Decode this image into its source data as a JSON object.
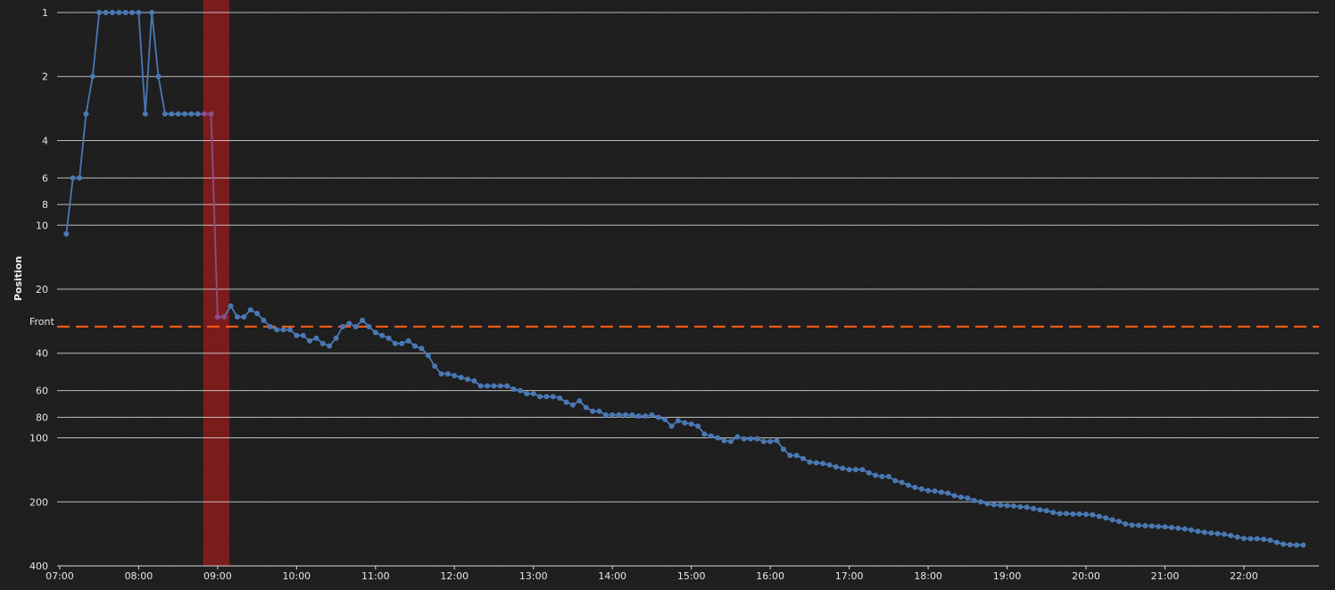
{
  "chart_data": {
    "type": "line",
    "ylabel": "Position",
    "y_scale": "log",
    "y_inverted": true,
    "ylim": [
      1,
      400
    ],
    "y_ticks": [
      1,
      2,
      4,
      6,
      8,
      10,
      20,
      40,
      60,
      80,
      100,
      200,
      400
    ],
    "x_ticks": [
      "07:00",
      "08:00",
      "09:00",
      "10:00",
      "11:00",
      "12:00",
      "13:00",
      "14:00",
      "15:00",
      "16:00",
      "17:00",
      "18:00",
      "19:00",
      "20:00",
      "21:00",
      "22:00"
    ],
    "xlim": [
      "06:58",
      "22:57"
    ],
    "grid": true,
    "colors": {
      "line": "#4a78b4",
      "highlight": "#8c1c1c",
      "reference": "#ff5a14",
      "background": "#1c1c1c"
    },
    "highlight_band": {
      "from": "08:49",
      "to": "09:09"
    },
    "reference_line": {
      "label": "Front",
      "y": 30
    },
    "series": [
      {
        "points": [
          [
            "07:05",
            11
          ],
          [
            "07:10",
            6
          ],
          [
            "07:15",
            6
          ],
          [
            "07:20",
            3
          ],
          [
            "07:25",
            2
          ],
          [
            "07:30",
            1
          ],
          [
            "07:35",
            1
          ],
          [
            "07:40",
            1
          ],
          [
            "07:45",
            1
          ],
          [
            "07:50",
            1
          ],
          [
            "07:55",
            1
          ],
          [
            "08:00",
            1
          ],
          [
            "08:05",
            3
          ],
          [
            "08:10",
            1
          ],
          [
            "08:15",
            2
          ],
          [
            "08:20",
            3
          ],
          [
            "08:25",
            3
          ],
          [
            "08:30",
            3
          ],
          [
            "08:35",
            3
          ],
          [
            "08:40",
            3
          ],
          [
            "08:45",
            3
          ],
          [
            "08:50",
            3
          ],
          [
            "08:55",
            3
          ],
          [
            "09:00",
            27
          ],
          [
            "09:05",
            27
          ],
          [
            "09:10",
            24
          ],
          [
            "09:15",
            27
          ],
          [
            "09:20",
            27
          ],
          [
            "09:25",
            25
          ],
          [
            "09:30",
            26
          ],
          [
            "09:35",
            28
          ],
          [
            "09:40",
            30
          ],
          [
            "09:45",
            31
          ],
          [
            "09:50",
            31
          ],
          [
            "09:55",
            31
          ],
          [
            "10:00",
            33
          ],
          [
            "10:05",
            33
          ],
          [
            "10:10",
            35
          ],
          [
            "10:15",
            34
          ],
          [
            "10:20",
            36
          ],
          [
            "10:25",
            37
          ],
          [
            "10:30",
            34
          ],
          [
            "10:35",
            30
          ],
          [
            "10:40",
            29
          ],
          [
            "10:45",
            30
          ],
          [
            "10:50",
            28
          ],
          [
            "10:55",
            30
          ],
          [
            "11:00",
            32
          ],
          [
            "11:05",
            33
          ],
          [
            "11:10",
            34
          ],
          [
            "11:15",
            36
          ],
          [
            "11:20",
            36
          ],
          [
            "11:25",
            35
          ],
          [
            "11:30",
            37
          ],
          [
            "11:35",
            38
          ],
          [
            "11:40",
            41
          ],
          [
            "11:45",
            46
          ],
          [
            "11:50",
            50
          ],
          [
            "11:55",
            50
          ],
          [
            "12:00",
            51
          ],
          [
            "12:05",
            52
          ],
          [
            "12:10",
            53
          ],
          [
            "12:15",
            54
          ],
          [
            "12:20",
            57
          ],
          [
            "12:25",
            57
          ],
          [
            "12:30",
            57
          ],
          [
            "12:35",
            57
          ],
          [
            "12:40",
            57
          ],
          [
            "12:45",
            59
          ],
          [
            "12:50",
            60
          ],
          [
            "12:55",
            62
          ],
          [
            "13:00",
            62
          ],
          [
            "13:05",
            64
          ],
          [
            "13:10",
            64
          ],
          [
            "13:15",
            64
          ],
          [
            "13:20",
            65
          ],
          [
            "13:25",
            68
          ],
          [
            "13:30",
            70
          ],
          [
            "13:35",
            67
          ],
          [
            "13:40",
            72
          ],
          [
            "13:45",
            75
          ],
          [
            "13:50",
            75
          ],
          [
            "13:55",
            78
          ],
          [
            "14:00",
            78
          ],
          [
            "14:05",
            78
          ],
          [
            "14:10",
            78
          ],
          [
            "14:15",
            78
          ],
          [
            "14:20",
            79
          ],
          [
            "14:25",
            79
          ],
          [
            "14:30",
            78
          ],
          [
            "14:35",
            80
          ],
          [
            "14:40",
            82
          ],
          [
            "14:45",
            88
          ],
          [
            "14:50",
            83
          ],
          [
            "14:55",
            85
          ],
          [
            "15:00",
            86
          ],
          [
            "15:05",
            88
          ],
          [
            "15:10",
            96
          ],
          [
            "15:15",
            98
          ],
          [
            "15:20",
            100
          ],
          [
            "15:25",
            103
          ],
          [
            "15:30",
            104
          ],
          [
            "15:35",
            99
          ],
          [
            "15:40",
            101
          ],
          [
            "15:45",
            101
          ],
          [
            "15:50",
            101
          ],
          [
            "15:55",
            104
          ],
          [
            "16:00",
            104
          ],
          [
            "16:05",
            103
          ],
          [
            "16:10",
            113
          ],
          [
            "16:15",
            121
          ],
          [
            "16:20",
            121
          ],
          [
            "16:25",
            125
          ],
          [
            "16:30",
            130
          ],
          [
            "16:35",
            131
          ],
          [
            "16:40",
            132
          ],
          [
            "16:45",
            134
          ],
          [
            "16:50",
            137
          ],
          [
            "16:55",
            139
          ],
          [
            "17:00",
            141
          ],
          [
            "17:05",
            141
          ],
          [
            "17:10",
            141
          ],
          [
            "17:15",
            146
          ],
          [
            "17:20",
            150
          ],
          [
            "17:25",
            152
          ],
          [
            "17:30",
            152
          ],
          [
            "17:35",
            159
          ],
          [
            "17:40",
            162
          ],
          [
            "17:45",
            167
          ],
          [
            "17:50",
            171
          ],
          [
            "17:55",
            174
          ],
          [
            "18:00",
            177
          ],
          [
            "18:05",
            178
          ],
          [
            "18:10",
            180
          ],
          [
            "18:15",
            182
          ],
          [
            "18:20",
            187
          ],
          [
            "18:25",
            190
          ],
          [
            "18:30",
            192
          ],
          [
            "18:35",
            197
          ],
          [
            "18:40",
            200
          ],
          [
            "18:45",
            204
          ],
          [
            "18:50",
            206
          ],
          [
            "18:55",
            207
          ],
          [
            "19:00",
            208
          ],
          [
            "19:05",
            209
          ],
          [
            "19:10",
            211
          ],
          [
            "19:15",
            212
          ],
          [
            "19:20",
            215
          ],
          [
            "19:25",
            218
          ],
          [
            "19:30",
            220
          ],
          [
            "19:35",
            224
          ],
          [
            "19:40",
            227
          ],
          [
            "19:45",
            227
          ],
          [
            "19:50",
            228
          ],
          [
            "19:55",
            228
          ],
          [
            "20:00",
            229
          ],
          [
            "20:05",
            230
          ],
          [
            "20:10",
            234
          ],
          [
            "20:15",
            238
          ],
          [
            "20:20",
            243
          ],
          [
            "20:25",
            247
          ],
          [
            "20:30",
            254
          ],
          [
            "20:35",
            257
          ],
          [
            "20:40",
            258
          ],
          [
            "20:45",
            259
          ],
          [
            "20:50",
            260
          ],
          [
            "20:55",
            261
          ],
          [
            "21:00",
            262
          ],
          [
            "21:05",
            264
          ],
          [
            "21:10",
            266
          ],
          [
            "21:15",
            268
          ],
          [
            "21:20",
            271
          ],
          [
            "21:25",
            275
          ],
          [
            "21:30",
            278
          ],
          [
            "21:35",
            280
          ],
          [
            "21:40",
            282
          ],
          [
            "21:45",
            284
          ],
          [
            "21:50",
            288
          ],
          [
            "21:55",
            293
          ],
          [
            "22:00",
            297
          ],
          [
            "22:05",
            298
          ],
          [
            "22:10",
            298
          ],
          [
            "22:15",
            300
          ],
          [
            "22:20",
            303
          ],
          [
            "22:25",
            310
          ],
          [
            "22:30",
            316
          ],
          [
            "22:35",
            318
          ],
          [
            "22:40",
            319
          ],
          [
            "22:45",
            319
          ]
        ]
      }
    ]
  }
}
